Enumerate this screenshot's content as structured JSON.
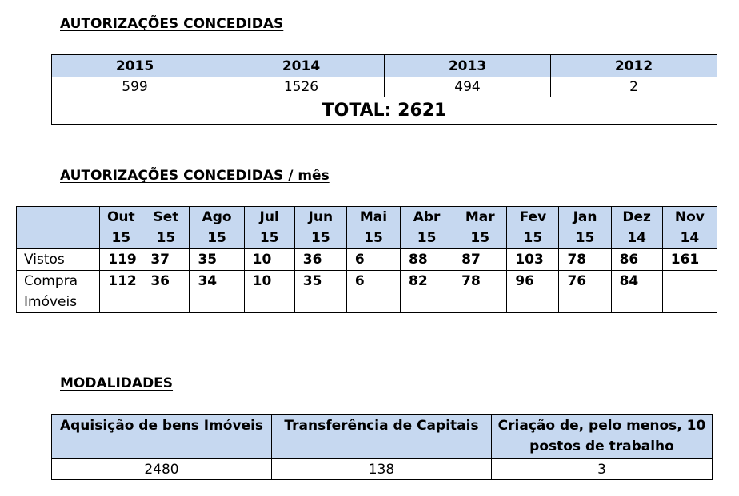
{
  "section1": {
    "heading": "AUTORIZAÇÕES CONCEDIDAS",
    "years": [
      "2015",
      "2014",
      "2013",
      "2012"
    ],
    "values": [
      "599",
      "1526",
      "494",
      "2"
    ],
    "total": "TOTAL: 2621"
  },
  "section2": {
    "heading": "AUTORIZAÇÕES CONCEDIDAS / mês",
    "months": [
      {
        "m": "Out",
        "y": "15"
      },
      {
        "m": "Set",
        "y": "15"
      },
      {
        "m": "Ago",
        "y": "15"
      },
      {
        "m": "Jul",
        "y": "15"
      },
      {
        "m": "Jun",
        "y": "15"
      },
      {
        "m": "Mai",
        "y": "15"
      },
      {
        "m": "Abr",
        "y": "15"
      },
      {
        "m": "Mar",
        "y": "15"
      },
      {
        "m": "Fev",
        "y": "15"
      },
      {
        "m": "Jan",
        "y": "15"
      },
      {
        "m": "Dez",
        "y": "14"
      },
      {
        "m": "Nov",
        "y": "14"
      }
    ],
    "rows": [
      {
        "label": [
          "Vistos"
        ],
        "values": [
          "119",
          "37",
          "35",
          "10",
          "36",
          "6",
          "88",
          "87",
          "103",
          "78",
          "86",
          "161"
        ]
      },
      {
        "label": [
          "Compra",
          "Imóveis"
        ],
        "values": [
          "112",
          "36",
          "34",
          "10",
          "35",
          "6",
          "82",
          "78",
          "96",
          "76",
          "84",
          ""
        ]
      }
    ]
  },
  "section3": {
    "heading": "MODALIDADES",
    "columns": [
      {
        "header": [
          "Aquisição de bens Imóveis"
        ],
        "value": "2480"
      },
      {
        "header": [
          "Transferência de Capitais"
        ],
        "value": "138"
      },
      {
        "header": [
          "Criação de, pelo menos, 10",
          "postos de trabalho"
        ],
        "value": "3"
      }
    ]
  }
}
